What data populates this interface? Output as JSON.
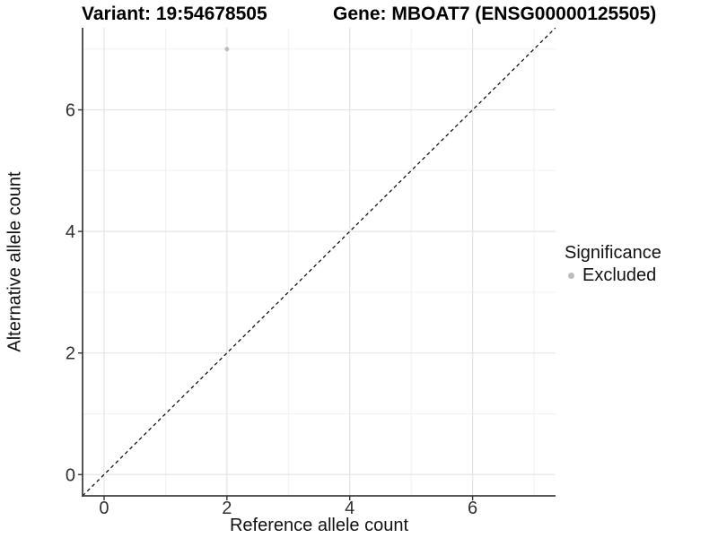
{
  "header": {
    "variant_title": "Variant: 19:54678505",
    "gene_title": "Gene: MBOAT7 (ENSG00000125505)"
  },
  "chart_data": {
    "type": "scatter",
    "title": "Variant: 19:54678505   Gene: MBOAT7 (ENSG00000125505)",
    "xlabel": "Reference allele count",
    "ylabel": "Alternative allele count",
    "xlim": [
      -0.35,
      7.35
    ],
    "ylim": [
      -0.35,
      7.35
    ],
    "x_ticks": [
      0,
      2,
      4,
      6
    ],
    "y_ticks": [
      0,
      2,
      4,
      6
    ],
    "x_minor_ticks": [
      1,
      3,
      5,
      7
    ],
    "y_minor_ticks": [
      1,
      3,
      5,
      7
    ],
    "grid": true,
    "reference_line": {
      "style": "dashed",
      "slope": 1,
      "intercept": 0,
      "color": "#000000"
    },
    "series": [
      {
        "name": "Excluded",
        "color": "#bdbdbd",
        "points": [
          {
            "x": 2,
            "y": 7
          }
        ]
      }
    ],
    "legend": {
      "title": "Significance",
      "position": "right",
      "items": [
        {
          "label": "Excluded",
          "color": "#bdbdbd"
        }
      ]
    },
    "colors": {
      "background": "#ffffff",
      "grid_major": "#e4e4e4",
      "grid_minor": "#f0f0f0",
      "axis_line": "#404040",
      "tick_mark": "#333333",
      "tick_label": "#303030"
    }
  }
}
